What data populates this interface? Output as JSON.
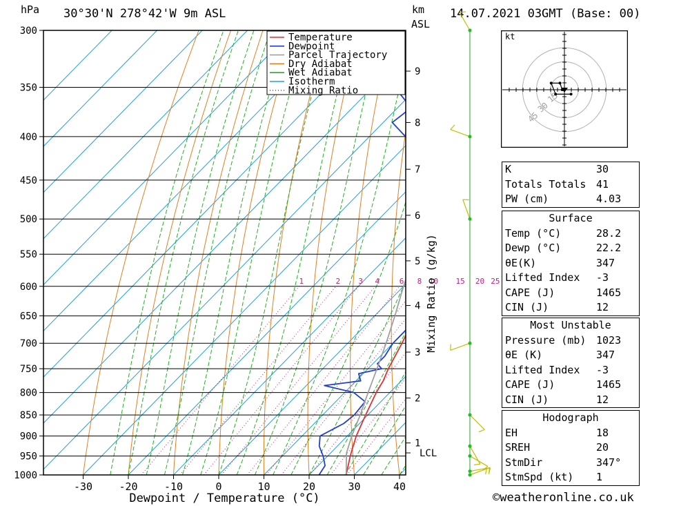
{
  "header": {
    "location": "30°30'N  278°42'W  9m  ASL",
    "hpa_label": "hPa",
    "km_label": "km",
    "asl_label": "ASL",
    "datetime": "14.07.2021  03GMT  (Base: 00)"
  },
  "legend": {
    "items": [
      {
        "label": "Temperature",
        "color": "#e03030",
        "dash": ""
      },
      {
        "label": "Dewpoint",
        "color": "#2040d0",
        "dash": ""
      },
      {
        "label": "Parcel Trajectory",
        "color": "#a0a0a0",
        "dash": ""
      },
      {
        "label": "Dry Adiabat",
        "color": "#e08020",
        "dash": ""
      },
      {
        "label": "Wet Adiabat",
        "color": "#20b020",
        "dash": ""
      },
      {
        "label": "Isotherm",
        "color": "#20a0e0",
        "dash": ""
      },
      {
        "label": "Mixing Ratio",
        "color": "#c02080",
        "dash": "1,3"
      }
    ]
  },
  "chart_data": {
    "type": "line",
    "xlabel": "Dewpoint / Temperature (°C)",
    "ylabel": "hPa",
    "y2label": "Mixing Ratio (g/kg)",
    "xlim": [
      -40,
      40
    ],
    "ylim": [
      1000,
      300
    ],
    "x_ticks": [
      "-30",
      "-20",
      "-10",
      "0",
      "10",
      "20",
      "30",
      "40"
    ],
    "pressure_ticks": [
      "300",
      "350",
      "400",
      "450",
      "500",
      "550",
      "600",
      "650",
      "700",
      "750",
      "800",
      "850",
      "900",
      "950",
      "1000"
    ],
    "km_ticks": [
      {
        "km": "1",
        "p": 917
      },
      {
        "km": "2",
        "p": 812
      },
      {
        "km": "3",
        "p": 717
      },
      {
        "km": "4",
        "p": 632
      },
      {
        "km": "5",
        "p": 560
      },
      {
        "km": "6",
        "p": 495
      },
      {
        "km": "7",
        "p": 437
      },
      {
        "km": "8",
        "p": 385
      },
      {
        "km": "9",
        "p": 335
      }
    ],
    "lcl": {
      "label": "LCL",
      "p": 942
    },
    "mixing_ratio_labels": [
      "1",
      "2",
      "3",
      "4",
      "6",
      "8",
      "10",
      "15",
      "20",
      "25"
    ],
    "series": [
      {
        "name": "Temperature",
        "color": "#e03030",
        "points": [
          [
            1000,
            28.2
          ],
          [
            950,
            25
          ],
          [
            925,
            23.5
          ],
          [
            900,
            22
          ],
          [
            850,
            19.5
          ],
          [
            800,
            17
          ],
          [
            775,
            16
          ],
          [
            750,
            14.5
          ],
          [
            700,
            12
          ],
          [
            650,
            9
          ],
          [
            600,
            6.2
          ],
          [
            550,
            2.5
          ],
          [
            500,
            -1.5
          ],
          [
            450,
            -6
          ],
          [
            400,
            -12
          ],
          [
            350,
            -20
          ],
          [
            300,
            -30
          ]
        ]
      },
      {
        "name": "Dewpoint",
        "color": "#2040d0",
        "points": [
          [
            1000,
            22.2
          ],
          [
            975,
            21.5
          ],
          [
            950,
            19
          ],
          [
            925,
            16
          ],
          [
            900,
            14
          ],
          [
            870,
            16.5
          ],
          [
            850,
            17
          ],
          [
            820,
            16.5
          ],
          [
            800,
            12
          ],
          [
            785,
            4
          ],
          [
            775,
            11
          ],
          [
            760,
            9
          ],
          [
            750,
            13
          ],
          [
            740,
            11
          ],
          [
            725,
            11
          ],
          [
            700,
            10
          ],
          [
            670,
            10
          ],
          [
            650,
            10
          ],
          [
            630,
            8
          ],
          [
            610,
            4
          ],
          [
            600,
            3
          ],
          [
            590,
            5
          ],
          [
            580,
            2
          ],
          [
            565,
            3
          ],
          [
            555,
            2
          ],
          [
            540,
            -3
          ],
          [
            530,
            -5
          ],
          [
            520,
            -7
          ],
          [
            512,
            -5
          ],
          [
            505,
            -5
          ],
          [
            498,
            -10
          ],
          [
            490,
            -13
          ],
          [
            480,
            -16
          ],
          [
            470,
            -12
          ],
          [
            460,
            -10
          ],
          [
            455,
            -20
          ],
          [
            450,
            -22
          ],
          [
            440,
            -22
          ],
          [
            425,
            -22
          ],
          [
            410,
            -28
          ],
          [
            400,
            -32
          ],
          [
            385,
            -38
          ],
          [
            370,
            -37
          ],
          [
            355,
            -43
          ],
          [
            350,
            -46
          ],
          [
            340,
            -44
          ],
          [
            328,
            -52
          ],
          [
            320,
            -52
          ],
          [
            310,
            -52
          ],
          [
            300,
            -50
          ]
        ]
      },
      {
        "name": "Parcel Trajectory",
        "color": "#a0a0a0",
        "points": [
          [
            1000,
            28.2
          ],
          [
            942,
            23.5
          ],
          [
            900,
            21
          ],
          [
            850,
            18.3
          ],
          [
            800,
            15.2
          ],
          [
            750,
            12
          ],
          [
            700,
            8.5
          ],
          [
            650,
            4.5
          ],
          [
            600,
            0
          ],
          [
            550,
            -4.5
          ],
          [
            500,
            -9.5
          ],
          [
            450,
            -15.5
          ],
          [
            400,
            -22
          ],
          [
            350,
            -30
          ],
          [
            300,
            -40
          ]
        ]
      }
    ],
    "wind_profile": [
      {
        "p": 1000,
        "dir": 70,
        "spd": 10
      },
      {
        "p": 990,
        "dir": 80,
        "spd": 15
      },
      {
        "p": 950,
        "dir": 120,
        "spd": 10
      },
      {
        "p": 925,
        "dir": 150,
        "spd": 5
      },
      {
        "p": 850,
        "dir": 135,
        "spd": 5
      },
      {
        "p": 700,
        "dir": 250,
        "spd": 10
      },
      {
        "p": 500,
        "dir": 340,
        "spd": 5
      },
      {
        "p": 400,
        "dir": 290,
        "spd": 10
      },
      {
        "p": 300,
        "dir": 330,
        "spd": 5
      }
    ],
    "hodograph": {
      "unit": "kt",
      "ring_labels": [
        "15",
        "30",
        "45"
      ],
      "points": [
        [
          0,
          0
        ],
        [
          -1,
          0
        ],
        [
          -2,
          -3
        ],
        [
          -6,
          -3
        ],
        [
          -4,
          2
        ],
        [
          3,
          2
        ]
      ]
    }
  },
  "indices": {
    "rows": [
      {
        "label": "K",
        "value": "30"
      },
      {
        "label": "Totals Totals",
        "value": "41"
      },
      {
        "label": "PW (cm)",
        "value": "4.03"
      }
    ]
  },
  "surface": {
    "title": "Surface",
    "rows": [
      {
        "label": "Temp (°C)",
        "value": "28.2"
      },
      {
        "label": "Dewp (°C)",
        "value": "22.2"
      },
      {
        "label": "θE(K)",
        "value": "347"
      },
      {
        "label": "Lifted Index",
        "value": "-3"
      },
      {
        "label": "CAPE (J)",
        "value": "1465"
      },
      {
        "label": "CIN (J)",
        "value": "12"
      }
    ]
  },
  "unstable": {
    "title": "Most Unstable",
    "rows": [
      {
        "label": "Pressure (mb)",
        "value": "1023"
      },
      {
        "label": "θE (K)",
        "value": "347"
      },
      {
        "label": "Lifted Index",
        "value": "-3"
      },
      {
        "label": "CAPE (J)",
        "value": "1465"
      },
      {
        "label": "CIN (J)",
        "value": "12"
      }
    ]
  },
  "hodotable": {
    "title": "Hodograph",
    "rows": [
      {
        "label": "EH",
        "value": "18"
      },
      {
        "label": "SREH",
        "value": "20"
      },
      {
        "label": "StmDir",
        "value": "347°"
      },
      {
        "label": "StmSpd (kt)",
        "value": "1"
      }
    ]
  },
  "footer": {
    "copyright": "©weatheronline.co.uk"
  }
}
